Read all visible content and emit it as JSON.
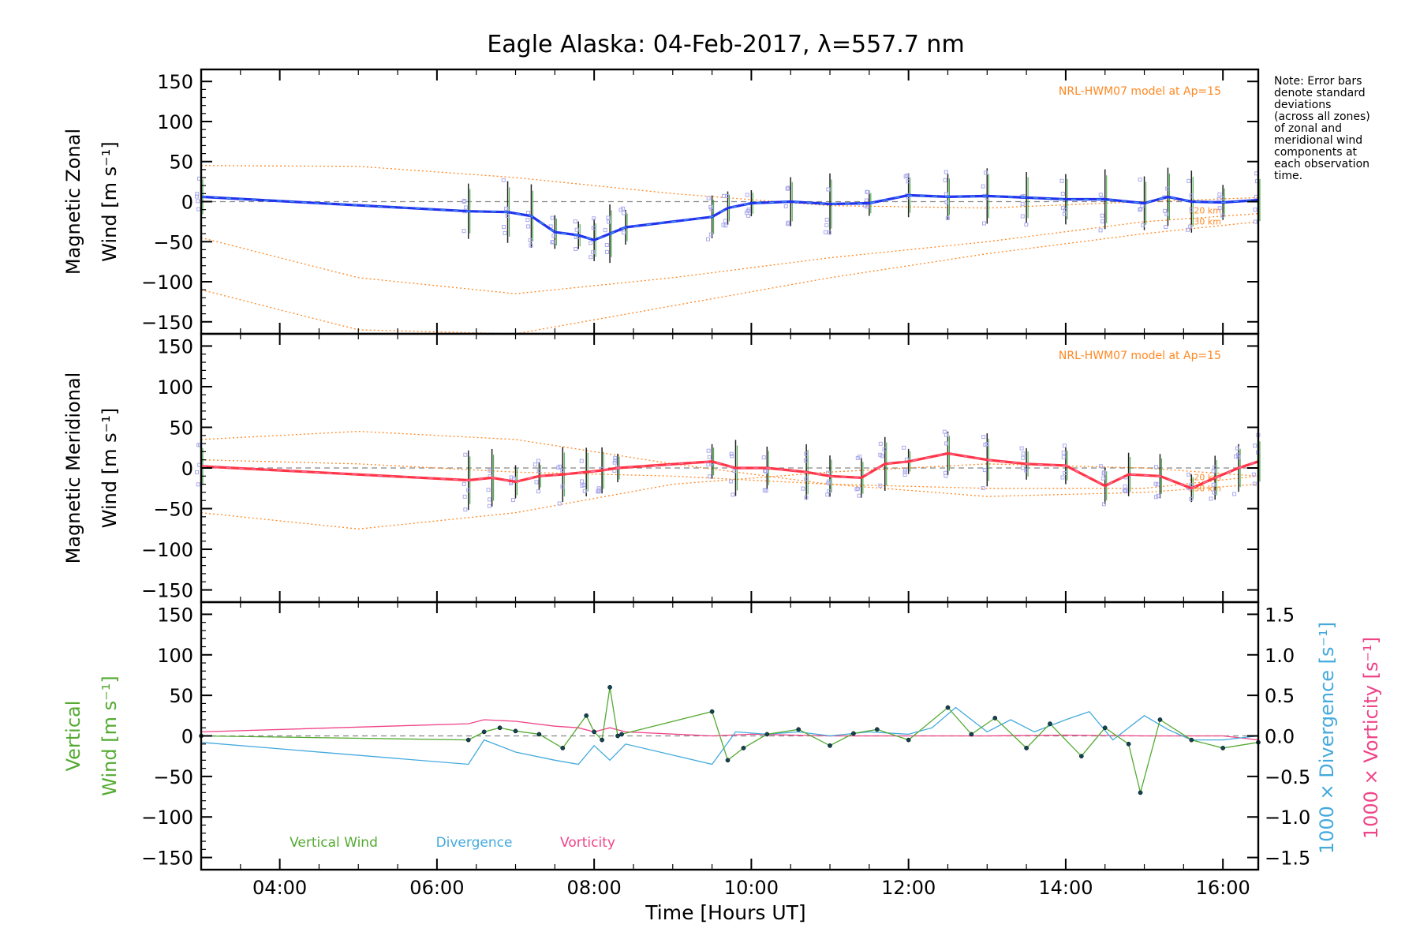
{
  "title": "Eagle Alaska: 04-Feb-2017, λ=557.7 nm",
  "note": [
    "Note: Error bars",
    "denote standard",
    "deviations",
    "(across all zones)",
    "of zonal and",
    "meridional wind",
    "components at",
    "each observation",
    "time."
  ],
  "xlabel": "Time [Hours UT]",
  "colors": {
    "zonal": "#2233ee",
    "zonal_inner": "#3fa0ee",
    "meridional": "#ff3344",
    "meridional_inner": "#ff77aa",
    "model": "#ff8822",
    "scatter": "#aaaaee",
    "errorbar": "#222222",
    "vertical": "#55aa33",
    "divergence": "#44aadd",
    "vorticity": "#ee4488",
    "reference": "#888888"
  },
  "chart_data": [
    {
      "type": "line",
      "panel": "zonal",
      "ylabel": [
        "Magnetic Zonal",
        "Wind [m s⁻¹]"
      ],
      "yticks": [
        "150",
        "100",
        "50",
        "0",
        "−50",
        "−100",
        "−150"
      ],
      "xticks": [
        "04:00",
        "06:00",
        "08:00",
        "10:00",
        "12:00",
        "14:00",
        "16:00"
      ],
      "xlim": [
        3.0,
        16.45
      ],
      "ylim": [
        -165,
        165
      ],
      "model_label": "NRL-HWM07 model at Ap=15",
      "model_annotations": [
        "120 km",
        "130 km"
      ],
      "series": [
        {
          "x": [
            3.0,
            6.4,
            6.9,
            7.2,
            7.5,
            7.8,
            8.0,
            8.2,
            8.4,
            9.5,
            9.7,
            10.0,
            10.5,
            11.0,
            11.5,
            12.0,
            12.5,
            13.0,
            13.5,
            14.0,
            14.5,
            15.0,
            15.3,
            15.6,
            16.0,
            16.45
          ],
          "y": [
            6,
            -12,
            -13,
            -18,
            -38,
            -42,
            -48,
            -40,
            -32,
            -19,
            -8,
            -2,
            0,
            -3,
            -2,
            8,
            6,
            7,
            5,
            3,
            3,
            -2,
            6,
            0,
            -1,
            2
          ]
        }
      ],
      "model_curves": [
        {
          "x": [
            3.0,
            5.0,
            7.0,
            9.0,
            11.0,
            13.0,
            15.0,
            16.45
          ],
          "y": [
            45,
            44,
            30,
            10,
            -5,
            -8,
            0,
            5
          ]
        },
        {
          "x": [
            3.0,
            5.0,
            7.0,
            9.0,
            11.0,
            13.0,
            15.0,
            16.45
          ],
          "y": [
            -45,
            -95,
            -115,
            -95,
            -70,
            -50,
            -25,
            -15
          ]
        },
        {
          "x": [
            3.0,
            5.0,
            7.0,
            9.0,
            11.0,
            13.0,
            15.0,
            16.45
          ],
          "y": [
            -110,
            -160,
            -165,
            -130,
            -95,
            -65,
            -40,
            -25
          ]
        }
      ]
    },
    {
      "type": "line",
      "panel": "meridional",
      "ylabel": [
        "Magnetic Meridional",
        "Wind [m s⁻¹]"
      ],
      "yticks": [
        "150",
        "100",
        "50",
        "0",
        "−50",
        "−100",
        "−150"
      ],
      "xticks": [
        "04:00",
        "06:00",
        "08:00",
        "10:00",
        "12:00",
        "14:00",
        "16:00"
      ],
      "xlim": [
        3.0,
        16.45
      ],
      "ylim": [
        -165,
        165
      ],
      "model_label": "NRL-HWM07 model at Ap=15",
      "model_annotations": [
        "120 km",
        "130 km"
      ],
      "series": [
        {
          "x": [
            3.0,
            6.4,
            6.7,
            7.0,
            7.3,
            7.6,
            7.9,
            8.1,
            8.3,
            9.5,
            9.8,
            10.2,
            10.7,
            11.0,
            11.4,
            11.7,
            12.0,
            12.5,
            13.0,
            13.5,
            14.0,
            14.5,
            14.8,
            15.2,
            15.6,
            15.9,
            16.2,
            16.45
          ],
          "y": [
            2,
            -15,
            -12,
            -17,
            -10,
            -8,
            -5,
            -3,
            0,
            8,
            0,
            0,
            -5,
            -10,
            -12,
            5,
            8,
            18,
            10,
            5,
            3,
            -22,
            -8,
            -10,
            -25,
            -12,
            0,
            8
          ]
        }
      ],
      "model_curves": [
        {
          "x": [
            3.0,
            5.0,
            7.0,
            9.0,
            11.0,
            13.0,
            15.0,
            16.45
          ],
          "y": [
            35,
            45,
            35,
            5,
            -20,
            -35,
            -30,
            -20
          ]
        },
        {
          "x": [
            3.0,
            5.0,
            7.0,
            9.0,
            11.0,
            13.0,
            15.0,
            16.45
          ],
          "y": [
            -55,
            -75,
            -55,
            -20,
            -5,
            5,
            0,
            -10
          ]
        },
        {
          "x": [
            3.0,
            5.0,
            7.0,
            9.0,
            11.0,
            13.0,
            15.0,
            16.45
          ],
          "y": [
            10,
            5,
            -5,
            -10,
            -20,
            -25,
            -25,
            -10
          ]
        }
      ]
    },
    {
      "type": "line",
      "panel": "vertical",
      "ylabel": [
        "Vertical",
        "Wind [m s⁻¹]"
      ],
      "yticks": [
        "150",
        "100",
        "50",
        "0",
        "−50",
        "−100",
        "−150"
      ],
      "xticks": [
        "04:00",
        "06:00",
        "08:00",
        "10:00",
        "12:00",
        "14:00",
        "16:00"
      ],
      "xlim": [
        3.0,
        16.45
      ],
      "ylim": [
        -165,
        165
      ],
      "y2label": [
        "1000 × Divergence",
        "1000 × Vorticity"
      ],
      "y2label_units": "[s⁻¹]",
      "y2ticks": [
        "1.5",
        "1.0",
        "0.5",
        "0.0",
        "−0.5",
        "−1.0",
        "−1.5"
      ],
      "y2lim": [
        -1.65,
        1.65
      ],
      "legend": [
        "Vertical Wind",
        "Divergence",
        "Vorticity"
      ],
      "series": [
        {
          "name": "Vertical Wind",
          "x": [
            3.0,
            6.4,
            6.6,
            6.8,
            7.0,
            7.3,
            7.6,
            7.9,
            8.0,
            8.1,
            8.2,
            8.3,
            8.35,
            9.5,
            9.7,
            9.9,
            10.2,
            10.6,
            11.0,
            11.3,
            11.6,
            12.0,
            12.5,
            12.8,
            13.1,
            13.5,
            13.8,
            14.2,
            14.5,
            14.8,
            14.95,
            15.2,
            15.6,
            16.0,
            16.45
          ],
          "y": [
            0,
            -5,
            5,
            10,
            6,
            2,
            -15,
            25,
            5,
            -5,
            60,
            0,
            2,
            30,
            -30,
            -15,
            2,
            8,
            -12,
            3,
            8,
            -5,
            35,
            2,
            22,
            -15,
            15,
            -25,
            10,
            -10,
            -70,
            20,
            -5,
            -15,
            -8
          ]
        },
        {
          "name": "Divergence",
          "axis": "y2",
          "x": [
            3.0,
            6.4,
            6.6,
            7.0,
            7.5,
            7.8,
            8.0,
            8.2,
            8.4,
            9.5,
            9.8,
            10.2,
            10.6,
            11.0,
            11.5,
            12.0,
            12.3,
            12.6,
            13.0,
            13.3,
            13.6,
            14.0,
            14.3,
            14.6,
            15.0,
            15.3,
            15.6,
            16.0,
            16.45
          ],
          "y": [
            -0.08,
            -0.35,
            -0.05,
            -0.2,
            -0.3,
            -0.35,
            -0.12,
            -0.3,
            -0.1,
            -0.35,
            0.05,
            0.02,
            0.05,
            0.0,
            0.05,
            0.02,
            0.1,
            0.35,
            0.05,
            0.2,
            0.05,
            0.2,
            0.3,
            -0.05,
            0.25,
            0.08,
            -0.05,
            -0.05,
            0.0
          ]
        },
        {
          "name": "Vorticity",
          "axis": "y2",
          "x": [
            3.0,
            6.4,
            6.6,
            7.0,
            7.5,
            7.8,
            8.0,
            8.2,
            8.4,
            9.5,
            10.0,
            11.0,
            12.0,
            13.0,
            14.0,
            15.0,
            16.0,
            16.45
          ],
          "y": [
            0.05,
            0.15,
            0.2,
            0.18,
            0.12,
            0.1,
            0.05,
            0.1,
            0.05,
            0.0,
            0.02,
            0.0,
            0.0,
            0.0,
            0.01,
            0.0,
            0.0,
            -0.05
          ]
        }
      ]
    }
  ]
}
